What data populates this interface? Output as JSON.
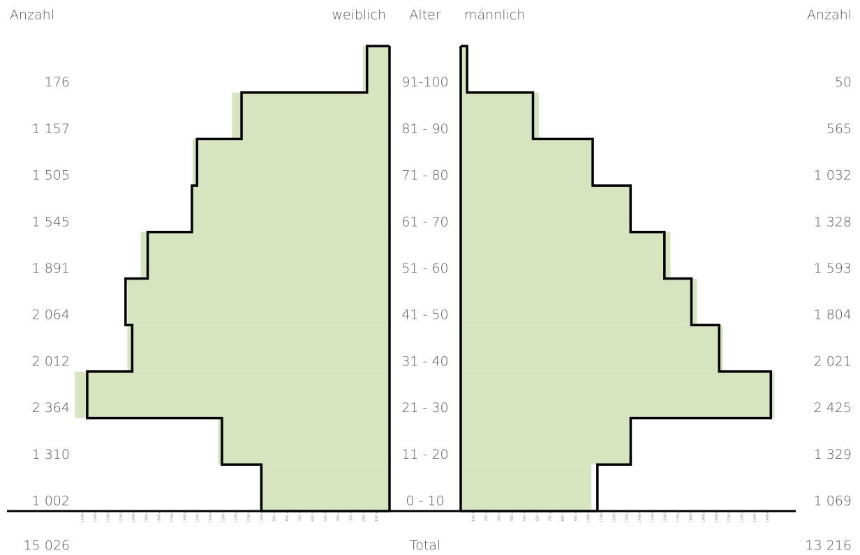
{
  "chart_data": {
    "type": "population-pyramid",
    "count_header_left": "Anzahl",
    "age_header": "Alter",
    "count_header_right": "Anzahl",
    "categories": [
      "0 - 10",
      "11 - 20",
      "21 - 30",
      "31 - 40",
      "41 - 50",
      "51 - 60",
      "61 - 70",
      "71 - 80",
      "81 - 90",
      "91-100"
    ],
    "series": [
      {
        "name": "weiblich",
        "side": "left",
        "color": "#000000",
        "values": [
          1002,
          1310,
          2364,
          2012,
          2064,
          1891,
          1545,
          1505,
          1157,
          176
        ],
        "value_labels": [
          "1 002",
          "1 310",
          "2 364",
          "2 012",
          "2 064",
          "1 891",
          "1 545",
          "1 505",
          "1 157",
          "176"
        ]
      },
      {
        "name": "männlich",
        "side": "right",
        "color": "#000000",
        "values": [
          1069,
          1329,
          2425,
          2021,
          1804,
          1593,
          1328,
          1032,
          565,
          50
        ],
        "value_labels": [
          "1 069",
          "1 329",
          "2 425",
          "2 021",
          "1 804",
          "1 593",
          "1 328",
          "1 032",
          "565",
          "50"
        ]
      }
    ],
    "comparison": [
      {
        "side": "left",
        "color": "#d6e4bf",
        "values": [
          1015,
          1340,
          2460,
          2050,
          2050,
          1945,
          1540,
          1540,
          1230,
          208
        ]
      },
      {
        "side": "right",
        "color": "#d6e4bf",
        "values": [
          1022,
          1333,
          2453,
          2050,
          1847,
          1640,
          1333,
          1027,
          612,
          60
        ]
      }
    ],
    "xlim": [
      0,
      2500
    ],
    "xticks": [
      100,
      200,
      300,
      400,
      500,
      600,
      700,
      800,
      900,
      1000,
      1100,
      1200,
      1300,
      1400,
      1500,
      1600,
      1700,
      1800,
      1900,
      2000,
      2100,
      2200,
      2300,
      2400
    ],
    "total": {
      "label": "Total",
      "left": 15026,
      "left_label": "15 026",
      "right": 13216,
      "right_label": "13 216"
    }
  }
}
